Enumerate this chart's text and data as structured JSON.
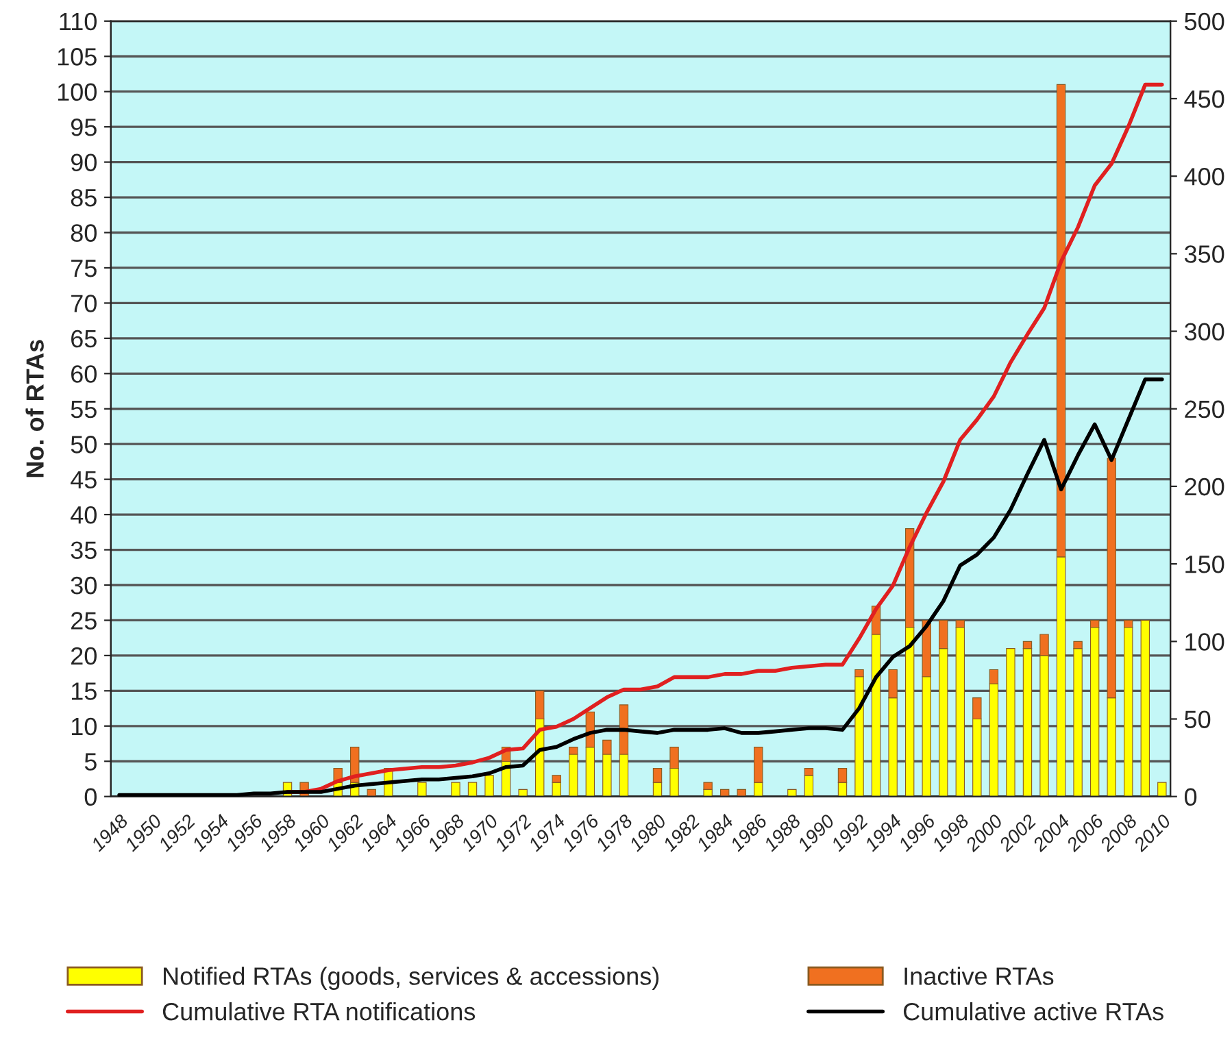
{
  "chart_data": {
    "type": "bar",
    "ylabel": "No. of RTAs",
    "stacked": true,
    "grid": "y",
    "legend": "bottom",
    "categories": [
      "1948",
      null,
      "1950",
      null,
      "1952",
      null,
      "1954",
      null,
      "1956",
      null,
      "1958",
      null,
      "1960",
      null,
      "1962",
      null,
      "1964",
      null,
      "1966",
      null,
      "1968",
      null,
      "1970",
      null,
      "1972",
      null,
      "1974",
      null,
      "1976",
      null,
      "1978",
      null,
      "1980",
      null,
      "1982",
      null,
      "1984",
      null,
      "1986",
      null,
      "1988",
      null,
      "1990",
      null,
      "1992",
      null,
      "1994",
      null,
      "1996",
      null,
      "1998",
      null,
      "2000",
      null,
      "2002",
      null,
      "2004",
      null,
      "2006",
      null,
      "2008",
      null,
      "2010"
    ],
    "ylim": [
      0,
      110
    ],
    "yticks": [
      0,
      5,
      10,
      15,
      20,
      25,
      30,
      35,
      40,
      45,
      50,
      55,
      60,
      65,
      70,
      75,
      80,
      85,
      90,
      95,
      100,
      105,
      110
    ],
    "y2lim": [
      0,
      500
    ],
    "y2ticks": [
      0,
      50,
      100,
      150,
      200,
      250,
      300,
      350,
      400,
      450,
      500
    ],
    "series": [
      {
        "name": "Notified RTAs (goods, services & accessions)",
        "color": "#ffff00",
        "values": [
          0,
          0,
          0,
          0,
          0,
          0,
          0,
          0,
          0,
          0,
          2,
          0,
          0,
          2,
          2,
          0,
          4,
          0,
          2,
          0,
          2,
          2,
          3,
          5,
          1,
          11,
          2,
          6,
          7,
          6,
          6,
          0,
          2,
          4,
          0,
          1,
          0,
          0,
          2,
          0,
          1,
          3,
          0,
          2,
          17,
          23,
          14,
          24,
          17,
          21,
          24,
          11,
          16,
          21,
          21,
          20,
          34,
          21,
          24,
          14,
          24,
          25,
          2
        ]
      },
      {
        "name": "Inactive RTAs",
        "color": "#f07020",
        "values": [
          0,
          0,
          0,
          0,
          0,
          0,
          0,
          0,
          0,
          0,
          0,
          2,
          0,
          2,
          5,
          1,
          0,
          0,
          0,
          0,
          0,
          0,
          0,
          2,
          0,
          4,
          1,
          1,
          5,
          2,
          7,
          0,
          2,
          3,
          0,
          1,
          1,
          1,
          5,
          0,
          0,
          1,
          0,
          2,
          1,
          4,
          4,
          14,
          8,
          4,
          1,
          3,
          2,
          0,
          1,
          3,
          67,
          1,
          1,
          34,
          1,
          0,
          0
        ]
      },
      {
        "name": "Cumulative RTA notifications",
        "type": "line",
        "axis": "y2",
        "color": "#e02020",
        "values": [
          null,
          null,
          null,
          null,
          null,
          null,
          null,
          null,
          null,
          null,
          3,
          3,
          5,
          10,
          13,
          15,
          17,
          18,
          19,
          19,
          20,
          22,
          25,
          30,
          31,
          43,
          45,
          50,
          57,
          64,
          69,
          69,
          71,
          77,
          77,
          77,
          79,
          79,
          81,
          81,
          83,
          84,
          85,
          85,
          102,
          121,
          136,
          161,
          183,
          203,
          230,
          243,
          258,
          280,
          298,
          315,
          345,
          367,
          394,
          408,
          432,
          459,
          459
        ]
      },
      {
        "name": "Cumulative active RTAs",
        "type": "line",
        "axis": "y2",
        "color": "#000000",
        "values": [
          1,
          1,
          1,
          1,
          1,
          1,
          1,
          1,
          2,
          2,
          3,
          3,
          3,
          5,
          7,
          8,
          9,
          10,
          11,
          11,
          12,
          13,
          15,
          19,
          20,
          30,
          32,
          37,
          41,
          43,
          43,
          42,
          41,
          43,
          43,
          43,
          44,
          41,
          41,
          42,
          43,
          44,
          44,
          43,
          57,
          77,
          90,
          97,
          110,
          126,
          149,
          156,
          167,
          185,
          208,
          230,
          198,
          220,
          240,
          217,
          243,
          269,
          269
        ]
      }
    ]
  }
}
